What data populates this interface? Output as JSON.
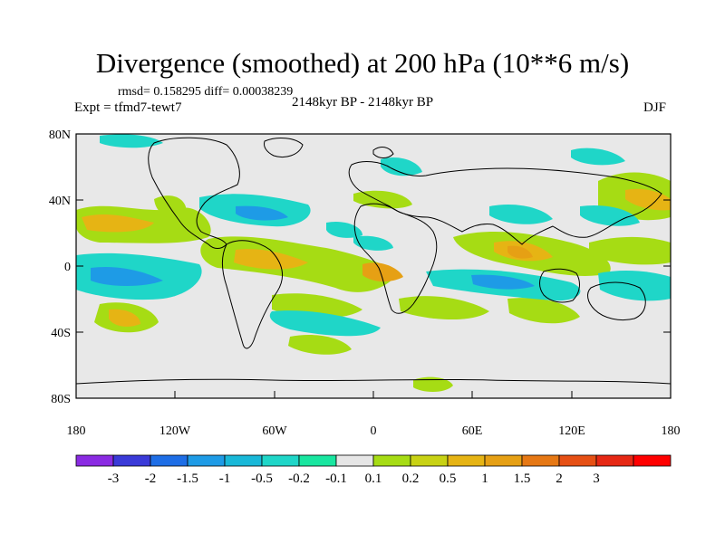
{
  "title": "Divergence (smoothed) at 200 hPa (10**6 m/s)",
  "stats": "rmsd= 0.158295 diff= 0.00038239",
  "experiment": "Expt = tfmd7-tewt7",
  "period": "2148kyr BP - 2148kyr BP",
  "season": "DJF",
  "colors": {
    "background": "#e8e8e8",
    "coast": "#000000"
  },
  "lat_ticks": [
    "80N",
    "40N",
    "0",
    "40S",
    "80S"
  ],
  "lon_ticks": [
    "180",
    "120W",
    "60W",
    "0",
    "60E",
    "120E",
    "180"
  ],
  "colorbar": {
    "colors": [
      "#8a2be2",
      "#3a3ad8",
      "#1e6ee6",
      "#1e9be6",
      "#19b8d8",
      "#1fd6c8",
      "#19e6a0",
      "#e6e6e6",
      "#a6dc14",
      "#c8d214",
      "#e6b414",
      "#e6a014",
      "#e67814",
      "#e65014",
      "#e62814",
      "#ff0000"
    ],
    "labels": [
      "-3",
      "-2",
      "-1.5",
      "-1",
      "-0.5",
      "-0.2",
      "-0.1",
      "0.1",
      "0.2",
      "0.5",
      "1",
      "1.5",
      "2",
      "3"
    ]
  }
}
